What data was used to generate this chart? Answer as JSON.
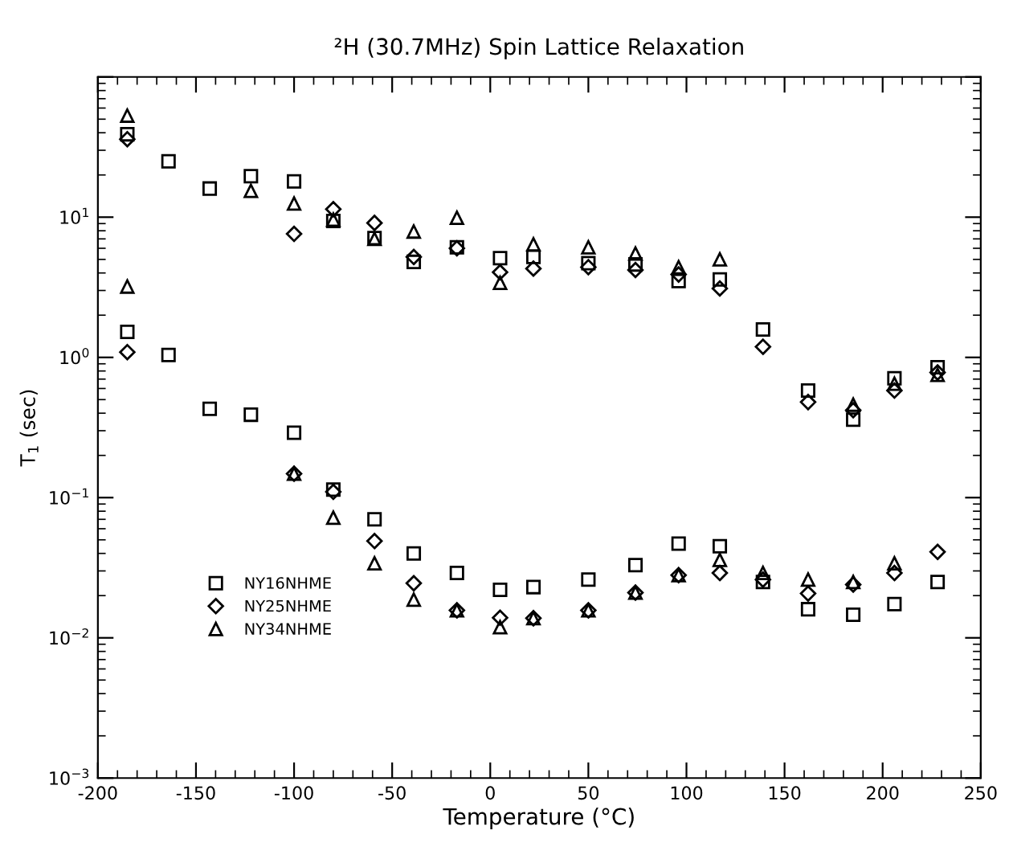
{
  "chart_data": {
    "type": "scatter",
    "title": "²H (30.7MHz) Spin Lattice Relaxation",
    "xlabel": "Temperature (°C)",
    "ylabel": "T$_{1}$ (sec)",
    "log": "y",
    "xlim": [
      -200,
      250
    ],
    "ylim": [
      0.001,
      100
    ],
    "xticks": [
      -200,
      -150,
      -100,
      -50,
      0,
      50,
      100,
      150,
      200,
      250
    ],
    "yticks": [
      {
        "value": 0.001,
        "label": "10$^{−3}$"
      },
      {
        "value": 0.01,
        "label": "10$^{−2}$"
      },
      {
        "value": 0.1,
        "label": "10$^{−1}$"
      },
      {
        "value": 1,
        "label": "10$^{0}$"
      },
      {
        "value": 10,
        "label": "10$^{1}$"
      },
      {
        "value": 100,
        "label": null
      }
    ],
    "grid": false,
    "legend": "bottom left",
    "series": [
      {
        "name": "NY16NHME",
        "color": "#000000",
        "marker": "square",
        "x": [
          -185,
          -164,
          -143,
          -122,
          -100,
          -80,
          -59,
          -39,
          -17,
          5,
          22,
          50,
          74,
          96,
          117,
          139,
          162,
          185,
          206,
          228,
          -185,
          -164,
          -143,
          -122,
          -100,
          -80,
          -59,
          -39,
          -17,
          5,
          22,
          50,
          74,
          96,
          117,
          139,
          162,
          185,
          206,
          228
        ],
        "values": [
          39,
          25,
          16,
          19.6,
          18,
          9.4,
          7.1,
          4.8,
          6.1,
          5.1,
          5.2,
          4.7,
          4.6,
          3.5,
          3.6,
          1.58,
          0.58,
          0.36,
          0.71,
          0.85,
          1.52,
          1.04,
          0.43,
          0.39,
          0.29,
          0.114,
          0.07,
          0.04,
          0.029,
          0.022,
          0.023,
          0.026,
          0.033,
          0.047,
          0.045,
          0.025,
          0.016,
          0.0146,
          0.0174,
          0.025
        ]
      },
      {
        "name": "NY25NHME",
        "color": "#000000",
        "marker": "diamond",
        "x": [
          -185,
          -100,
          -80,
          -59,
          -39,
          -17,
          5,
          22,
          50,
          74,
          96,
          117,
          139,
          162,
          185,
          206,
          228,
          -185,
          -100,
          -80,
          -59,
          -39,
          -17,
          5,
          22,
          50,
          74,
          96,
          117,
          139,
          162,
          185,
          206,
          228
        ],
        "values": [
          36,
          7.6,
          11.4,
          9.1,
          5.2,
          6.0,
          4.05,
          4.3,
          4.4,
          4.2,
          3.9,
          3.1,
          1.19,
          0.48,
          0.42,
          0.58,
          0.78,
          1.09,
          0.148,
          0.11,
          0.049,
          0.0245,
          0.0157,
          0.0139,
          0.0138,
          0.0157,
          0.021,
          0.028,
          0.029,
          0.026,
          0.0207,
          0.024,
          0.029,
          0.041
        ]
      },
      {
        "name": "NY34NHME",
        "color": "#000000",
        "marker": "triangle",
        "x": [
          -185,
          -122,
          -100,
          -80,
          -59,
          -39,
          -17,
          5,
          22,
          50,
          74,
          96,
          117,
          185,
          206,
          228,
          -185,
          -100,
          -80,
          -59,
          -39,
          -17,
          5,
          22,
          50,
          74,
          96,
          117,
          139,
          162,
          185,
          206
        ],
        "values": [
          53,
          15.4,
          12.5,
          9.6,
          7.0,
          7.9,
          9.9,
          3.4,
          6.4,
          6.1,
          5.5,
          4.4,
          5.0,
          0.46,
          0.65,
          0.75,
          3.2,
          0.148,
          0.072,
          0.034,
          0.0187,
          0.0157,
          0.0119,
          0.0138,
          0.0157,
          0.021,
          0.028,
          0.036,
          0.029,
          0.026,
          0.025,
          0.034
        ]
      }
    ]
  }
}
